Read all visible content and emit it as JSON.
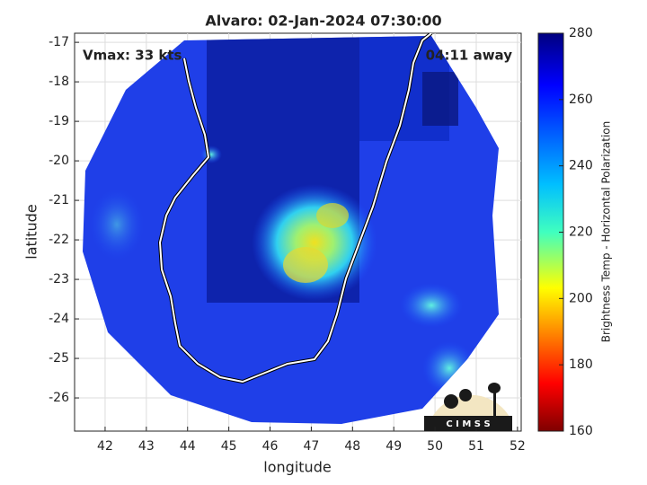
{
  "title": "Alvaro: 02-Jan-2024 07:30:00",
  "vmax": "Vmax: 33 kts",
  "eta": "04:11 away",
  "x_axis": {
    "label": "longitude",
    "lim": [
      41.26,
      52.09
    ],
    "ticks": [
      42,
      43,
      44,
      45,
      46,
      47,
      48,
      49,
      50,
      51,
      52
    ]
  },
  "y_axis": {
    "label": "latitude",
    "lim": [
      -26.84,
      -16.77
    ],
    "ticks": [
      -17,
      -18,
      -19,
      -20,
      -21,
      -22,
      -23,
      -24,
      -25,
      -26
    ]
  },
  "colorbar": {
    "label": "Brightness Temp - Horizontal Polarization",
    "lim": [
      160,
      280
    ],
    "ticks": [
      160,
      180,
      200,
      220,
      240,
      260,
      280
    ]
  },
  "logo": "C I M S S"
}
